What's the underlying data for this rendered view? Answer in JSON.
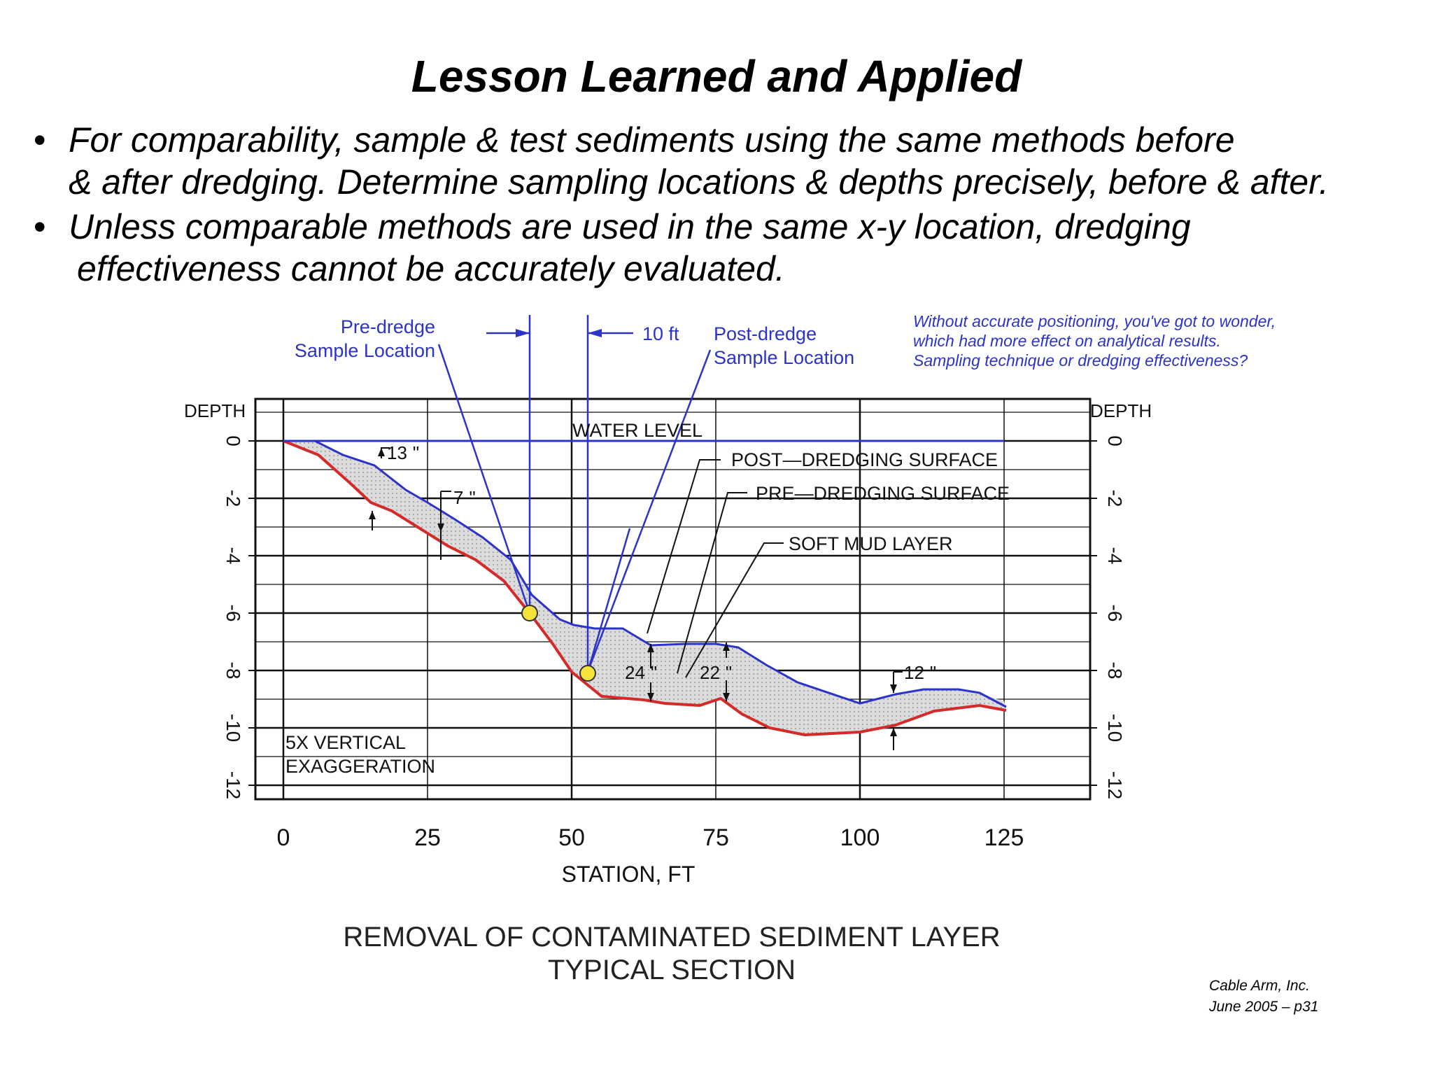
{
  "title": "Lesson Learned and Applied",
  "bullets": [
    {
      "marker": "•",
      "lines": [
        "For comparability, sample & test sediments using the same methods before",
        "& after dredging.  Determine sampling locations & depths precisely, before & after."
      ]
    },
    {
      "marker": "•",
      "lines": [
        "Unless comparable methods are used in the same x-y location, dredging",
        "effectiveness cannot be accurately evaluated."
      ]
    }
  ],
  "diagram": {
    "depth_label_left": "DEPTH",
    "depth_label_right": "DEPTH",
    "depth_ticks": [
      "0",
      "-2",
      "-4",
      "-6",
      "-8",
      "-10",
      "-12"
    ],
    "station_ticks": [
      "0",
      "25",
      "50",
      "75",
      "100",
      "125"
    ],
    "x_axis_label": "STATION,  FT",
    "water_level_label": "WATER LEVEL",
    "post_dredging_label": "POST—DREDGING SURFACE",
    "pre_dredging_label": "PRE—DREDGING SURFACE",
    "soft_mud_label": "SOFT MUD LAYER",
    "exaggeration_line1": "5X VERTICAL",
    "exaggeration_line2": "EXAGGERATION",
    "pre_dredge_line1": "Pre-dredge",
    "pre_dredge_line2": "Sample Location",
    "post_dredge_line1": "Post-dredge",
    "post_dredge_line2": "Sample Location",
    "offset_label": "10 ft",
    "note_lines": [
      "Without accurate positioning, you've got to wonder,",
      "which had more effect on analytical results.",
      "Sampling technique or dredging effectiveness?"
    ],
    "thickness_13": "13",
    "thickness_7": "7",
    "thickness_24": "24",
    "thickness_22": "22",
    "thickness_12": "12",
    "inch_mark": "\"",
    "caption_line1": "REMOVAL OF CONTAMINATED SEDIMENT LAYER",
    "caption_line2": "TYPICAL SECTION",
    "colors": {
      "grid": "#111111",
      "surface_blue": "#2b33c8",
      "surface_red": "#d42a2a",
      "mud_fill": "#d8d8d8",
      "sample_dot": "#f5e23a",
      "note_text": "#2b33c8"
    }
  },
  "credit": {
    "line1": "Cable Arm, Inc.",
    "line2": "June 2005 – p31"
  }
}
